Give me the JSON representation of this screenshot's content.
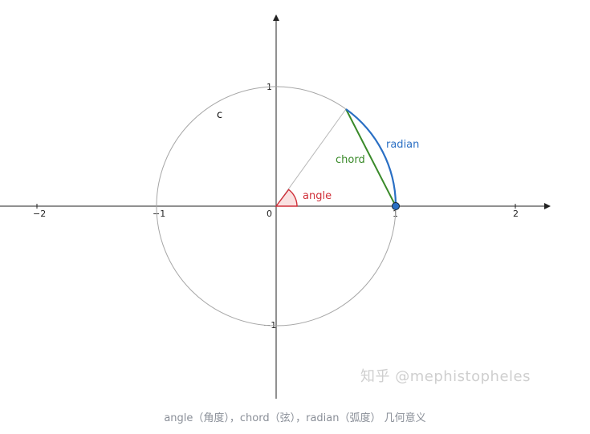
{
  "diagram": {
    "circle_label": "c",
    "labels": {
      "angle": "angle",
      "chord": "chord",
      "radian": "radian"
    },
    "x_ticks": [
      "−2",
      "−1",
      "0",
      "1",
      "2"
    ],
    "y_ticks": [
      "1",
      "−1"
    ],
    "colors": {
      "angle": "#d0303a",
      "chord": "#3a8a2a",
      "radian": "#2a6fc4",
      "circle": "#a6a6a6",
      "axis": "#222222"
    },
    "angle_degrees": 53
  },
  "watermark": "知乎 @mephistopheles",
  "caption": "angle（角度），chord（弦），radian（弧度） 几何意义"
}
